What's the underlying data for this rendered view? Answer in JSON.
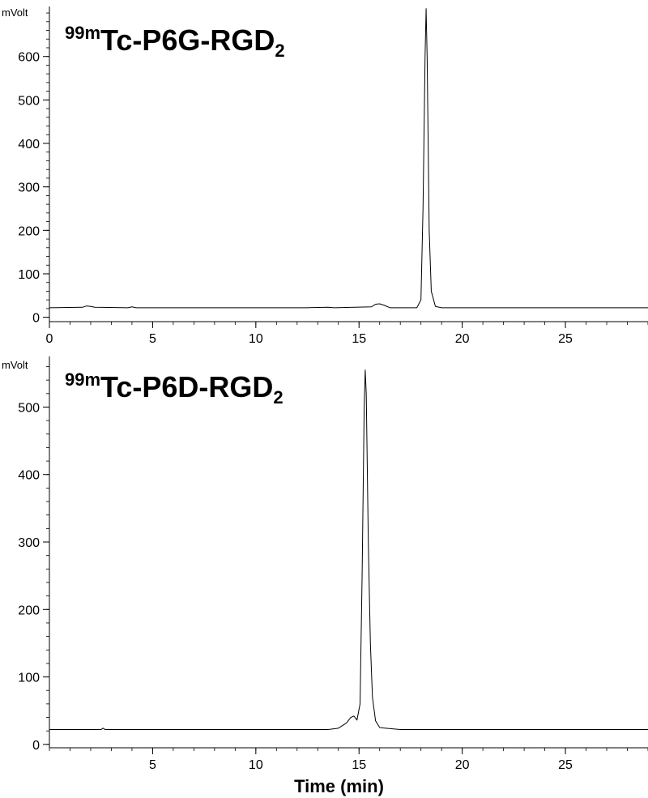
{
  "chart_data": [
    {
      "type": "line",
      "title": {
        "sup": "99m",
        "main": "Tc-P6G-RGD",
        "sub": "2"
      },
      "ylabel": "mVolt",
      "xlabel": "",
      "xlim": [
        0,
        29
      ],
      "ylim": [
        -10,
        715
      ],
      "xticks": [
        0,
        5,
        10,
        15,
        20,
        25
      ],
      "yticks": [
        0,
        100,
        200,
        300,
        400,
        500,
        600
      ],
      "baseline": 22,
      "series": [
        {
          "x": [
            0,
            1.6,
            1.8,
            2.0,
            2.2,
            3.8,
            4.0,
            4.2,
            12.5,
            13.5,
            13.8,
            15.6,
            15.8,
            16.0,
            16.2,
            16.5,
            17.8,
            18.0,
            18.1,
            18.2,
            18.25,
            18.3,
            18.4,
            18.5,
            18.7,
            19.0,
            20,
            25,
            29
          ],
          "y": [
            22,
            23,
            26,
            25,
            23,
            22,
            24,
            22,
            22,
            23,
            22,
            24,
            30,
            31,
            28,
            22,
            22,
            40,
            250,
            600,
            710,
            600,
            200,
            60,
            25,
            22,
            22,
            22,
            22
          ]
        }
      ]
    },
    {
      "type": "line",
      "title": {
        "sup": "99m",
        "main": "Tc-P6D-RGD",
        "sub": "2"
      },
      "ylabel": "mVolt",
      "xlabel": "Time (min)",
      "xlim": [
        0,
        29
      ],
      "ylim": [
        -5,
        575
      ],
      "xticks": [
        5,
        10,
        15,
        20,
        25
      ],
      "yticks": [
        0,
        100,
        200,
        300,
        400,
        500
      ],
      "baseline": 22,
      "series": [
        {
          "x": [
            0,
            2.5,
            2.6,
            2.7,
            13.5,
            14.0,
            14.2,
            14.4,
            14.6,
            14.75,
            14.9,
            15.05,
            15.15,
            15.25,
            15.3,
            15.35,
            15.45,
            15.55,
            15.65,
            15.8,
            16.0,
            16.3,
            17,
            20,
            25,
            29
          ],
          "y": [
            22,
            22,
            24,
            22,
            22,
            24,
            28,
            32,
            40,
            42,
            36,
            60,
            250,
            500,
            555,
            520,
            300,
            150,
            70,
            35,
            25,
            24,
            22,
            22,
            22,
            22
          ]
        }
      ]
    }
  ]
}
